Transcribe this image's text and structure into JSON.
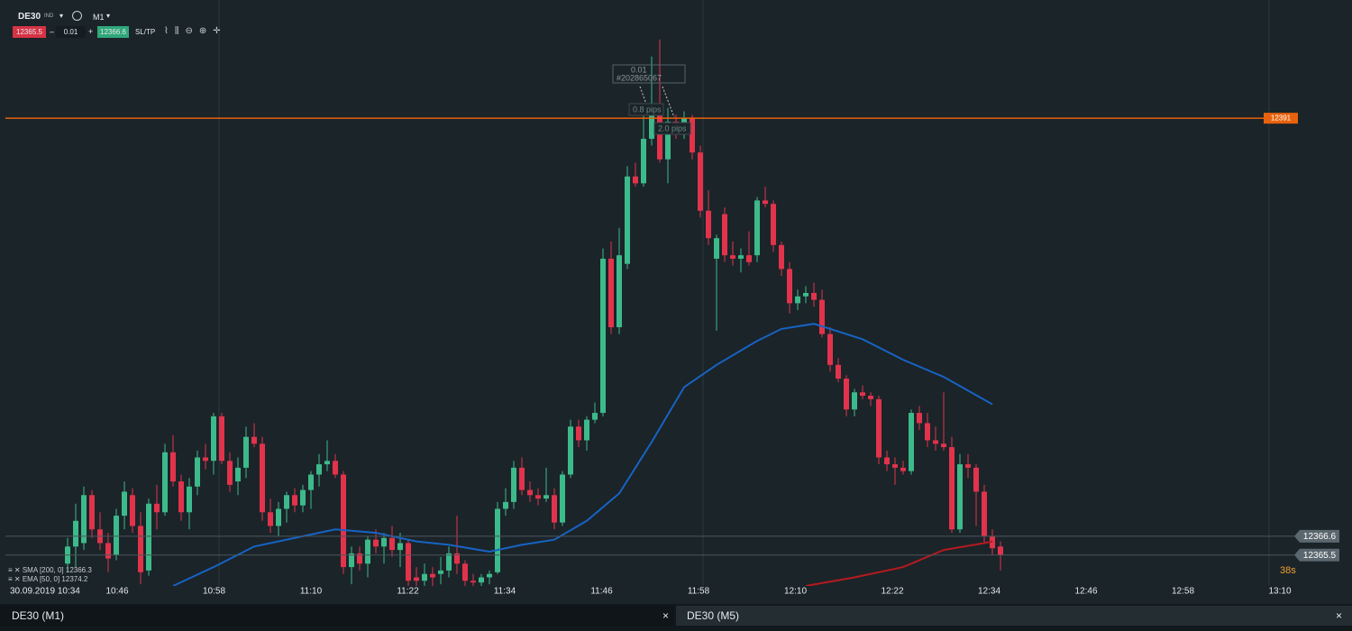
{
  "header": {
    "symbol": "DE30",
    "market": "IND",
    "timeframe": "M1",
    "volume": "0.01",
    "sl_tp": "SL/TP"
  },
  "tabs": [
    "DE30 (M1)",
    "DE30 (M5)"
  ],
  "countdown": "38s",
  "chart_data": {
    "type": "candlestick",
    "x_labels": [
      "30.09.2019 10:34",
      "10:46",
      "10:58",
      "11:10",
      "11:22",
      "11:34",
      "11:46",
      "11:58",
      "12:10",
      "12:22",
      "12:34",
      "12:46",
      "12:58",
      "13:10"
    ],
    "ylim": [
      12363.7,
      12397.9
    ],
    "up_color": "#3dba8b",
    "down_color": "#e2334c",
    "open": [
      12365.0,
      12366.0,
      12366.2,
      12369.0,
      12367.0,
      12366.2,
      12365.5,
      12367.8,
      12369.0,
      12367.2,
      12364.6,
      12368.5,
      12368.0,
      12371.5,
      12369.8,
      12368.0,
      12369.5,
      12371.2,
      12371.0,
      12373.6,
      12371.0,
      12369.8,
      12370.6,
      12372.4,
      12372.0,
      12368.0,
      12367.2,
      12368.2,
      12369.0,
      12368.4,
      12369.3,
      12370.2,
      12370.8,
      12371.0,
      12370.2,
      12364.8,
      12365.6,
      12365.0,
      12366.4,
      12366.0,
      12366.5,
      12365.8,
      12366.2,
      12364.2,
      12364.0,
      12364.4,
      12364.4,
      12364.6,
      12365.6,
      12365.0,
      12364.0,
      12363.9,
      12364.2,
      12364.5,
      12368.2,
      12368.6,
      12370.6,
      12369.3,
      12369.0,
      12368.8,
      12369.0,
      12367.4,
      12370.2,
      12373.0,
      12372.2,
      12373.4,
      12373.8,
      12382.8,
      12378.8,
      12382.5,
      12387.6,
      12387.2,
      12389.8,
      12391.6,
      12388.6,
      12390.8,
      12390.4,
      12391.0,
      12389.0,
      12385.6,
      12382.8,
      12385.4,
      12383.0,
      12382.8,
      12383.0,
      12383.0,
      12386.2,
      12386.0,
      12383.6,
      12382.2,
      12380.2,
      12380.6,
      12380.8,
      12380.4,
      12378.4,
      12376.6,
      12375.8,
      12374.0,
      12375.0,
      12374.8,
      12374.6,
      12371.2,
      12370.8,
      12370.6,
      12370.4,
      12373.8,
      12373.2,
      12372.2,
      12372.0,
      12371.8,
      12367.0,
      12370.8,
      12370.6,
      12369.2,
      12366.6,
      12366.0
    ],
    "high": [
      12366.5,
      12368.5,
      12369.5,
      12369.3,
      12368.0,
      12366.8,
      12368.2,
      12369.8,
      12369.4,
      12368.0,
      12368.8,
      12369.6,
      12372.0,
      12372.5,
      12370.2,
      12370.0,
      12371.6,
      12372.0,
      12373.8,
      12373.8,
      12371.5,
      12371.2,
      12373.0,
      12373.2,
      12372.4,
      12368.8,
      12368.6,
      12369.2,
      12369.4,
      12369.6,
      12370.4,
      12371.4,
      12372.2,
      12371.4,
      12370.4,
      12366.0,
      12366.0,
      12366.6,
      12367.0,
      12366.8,
      12367.2,
      12366.8,
      12366.4,
      12364.8,
      12365.0,
      12364.8,
      12365.4,
      12366.0,
      12367.8,
      12365.2,
      12364.4,
      12364.4,
      12364.6,
      12368.6,
      12369.4,
      12371.0,
      12371.2,
      12369.8,
      12369.4,
      12370.6,
      12369.4,
      12370.4,
      12373.4,
      12373.4,
      12373.6,
      12374.4,
      12383.4,
      12383.8,
      12384.6,
      12388.2,
      12388.4,
      12391.2,
      12394.6,
      12395.6,
      12391.6,
      12391.2,
      12391.4,
      12391.2,
      12389.4,
      12386.8,
      12384.2,
      12385.8,
      12383.8,
      12383.4,
      12384.4,
      12386.4,
      12387.0,
      12386.2,
      12383.8,
      12382.6,
      12381.0,
      12381.2,
      12381.4,
      12381.0,
      12378.8,
      12377.0,
      12376.0,
      12375.2,
      12375.4,
      12375.0,
      12374.8,
      12371.6,
      12371.2,
      12371.0,
      12374.0,
      12374.2,
      12373.8,
      12373.0,
      12375.0,
      12372.4,
      12371.4,
      12371.4,
      12370.8,
      12369.6,
      12367.0,
      12366.3
    ],
    "low": [
      12364.5,
      12364.8,
      12365.8,
      12366.5,
      12365.8,
      12364.5,
      12365.2,
      12367.0,
      12366.8,
      12363.8,
      12364.3,
      12367.0,
      12367.8,
      12369.5,
      12367.5,
      12367.0,
      12369.0,
      12370.5,
      12370.2,
      12370.8,
      12369.2,
      12369.0,
      12370.0,
      12371.8,
      12367.5,
      12366.8,
      12366.6,
      12367.4,
      12368.0,
      12368.0,
      12368.2,
      12369.5,
      12370.4,
      12370.0,
      12364.4,
      12363.8,
      12364.6,
      12364.2,
      12365.6,
      12365.0,
      12365.4,
      12364.8,
      12363.7,
      12363.7,
      12363.7,
      12363.7,
      12363.8,
      12364.2,
      12364.4,
      12363.7,
      12363.7,
      12363.7,
      12363.8,
      12364.4,
      12367.8,
      12368.2,
      12369.0,
      12368.6,
      12368.4,
      12368.6,
      12367.0,
      12367.2,
      12370.0,
      12371.8,
      12371.6,
      12373.2,
      12373.6,
      12378.4,
      12378.4,
      12382.2,
      12387.0,
      12387.0,
      12389.4,
      12388.4,
      12387.2,
      12389.8,
      12389.8,
      12388.6,
      12385.2,
      12383.6,
      12378.6,
      12382.6,
      12382.4,
      12382.0,
      12382.4,
      12382.6,
      12385.8,
      12383.2,
      12381.8,
      12379.6,
      12379.8,
      12380.2,
      12380.0,
      12378.2,
      12376.2,
      12375.6,
      12373.6,
      12373.6,
      12374.6,
      12374.2,
      12370.8,
      12370.4,
      12369.6,
      12370.2,
      12370.2,
      12372.8,
      12371.8,
      12371.6,
      12371.6,
      12366.8,
      12366.8,
      12370.0,
      12367.2,
      12366.2,
      12365.5,
      12364.6
    ],
    "close": [
      12366.0,
      12367.5,
      12369.0,
      12367.0,
      12366.2,
      12365.3,
      12367.8,
      12369.2,
      12367.2,
      12364.5,
      12368.5,
      12368.0,
      12371.5,
      12369.8,
      12368.0,
      12369.5,
      12371.2,
      12371.0,
      12373.6,
      12371.0,
      12369.6,
      12370.6,
      12372.4,
      12372.0,
      12368.0,
      12367.2,
      12368.2,
      12369.0,
      12368.4,
      12369.3,
      12370.2,
      12370.8,
      12371.0,
      12370.2,
      12364.8,
      12365.6,
      12365.0,
      12366.4,
      12366.0,
      12366.5,
      12365.8,
      12366.2,
      12364.0,
      12364.0,
      12364.4,
      12364.2,
      12364.6,
      12365.6,
      12365.0,
      12364.0,
      12363.9,
      12364.2,
      12364.4,
      12368.2,
      12368.6,
      12370.6,
      12369.3,
      12369.0,
      12368.8,
      12369.0,
      12367.4,
      12370.2,
      12373.0,
      12372.2,
      12373.4,
      12373.8,
      12382.8,
      12378.8,
      12383.0,
      12387.6,
      12387.2,
      12389.8,
      12391.6,
      12388.6,
      12390.8,
      12390.4,
      12391.0,
      12389.0,
      12385.6,
      12384.0,
      12384.0,
      12383.0,
      12382.8,
      12383.0,
      12382.6,
      12386.2,
      12386.0,
      12383.6,
      12382.2,
      12380.2,
      12380.6,
      12380.8,
      12380.4,
      12378.4,
      12376.6,
      12375.8,
      12374.0,
      12375.0,
      12374.8,
      12374.6,
      12371.2,
      12370.8,
      12370.6,
      12370.4,
      12373.8,
      12373.2,
      12372.2,
      12372.0,
      12371.8,
      12367.0,
      12370.8,
      12370.6,
      12369.2,
      12366.6,
      12365.9,
      12365.5
    ],
    "bid": 12365.5,
    "ask": 12366.6,
    "order_level": 12391.0,
    "order_color": "#e8620c",
    "indicators": [
      {
        "name": "SMA [200, 0]",
        "last": 12366.3,
        "color": "#b51a1f",
        "x": [
          91,
          97,
          103,
          108,
          113,
          114
        ],
        "values": [
          12363.7,
          12364.2,
          12364.8,
          12365.8,
          12366.2,
          12366.3
        ]
      },
      {
        "name": "EMA [50, 0]",
        "last": 12374.2,
        "color": "#1763c4",
        "x": [
          13,
          18,
          23,
          29,
          33,
          38,
          43,
          47,
          52,
          56,
          60,
          64,
          68,
          72,
          76,
          80,
          85,
          88,
          92,
          98,
          103,
          108,
          114
        ],
        "values": [
          12363.7,
          12364.8,
          12366.0,
          12366.6,
          12367.0,
          12366.8,
          12366.3,
          12366.1,
          12365.7,
          12366.1,
          12366.4,
          12367.5,
          12369.1,
          12372.1,
          12375.3,
          12376.6,
          12378.0,
          12378.7,
          12379.0,
          12378.1,
          12376.9,
          12375.9,
          12374.3
        ]
      }
    ],
    "order_ticket": {
      "volume": "0.01",
      "id": "#202865067",
      "sl_distance": "0.8 pips",
      "tp_distance": "2.0 pips"
    }
  }
}
